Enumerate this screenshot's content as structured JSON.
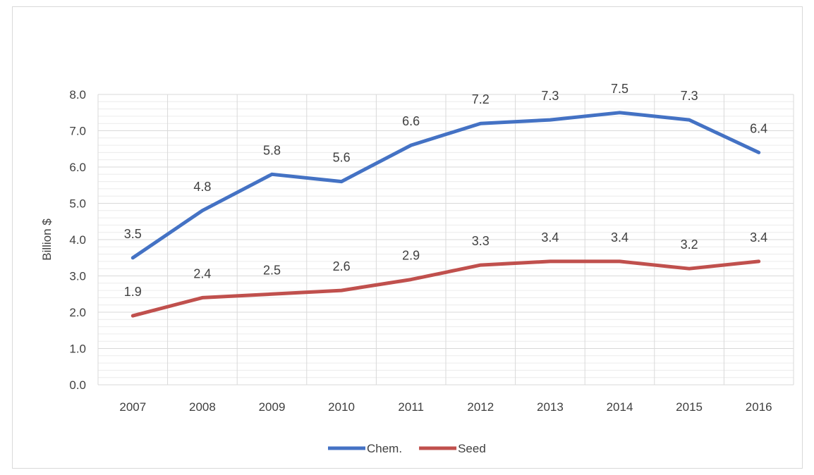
{
  "chart_data": {
    "type": "line",
    "title": "",
    "xlabel": "",
    "ylabel": "Billion $",
    "ylim": [
      0,
      8
    ],
    "yticks": [
      "0.0",
      "1.0",
      "2.0",
      "3.0",
      "4.0",
      "5.0",
      "6.0",
      "7.0",
      "8.0"
    ],
    "categories": [
      "2007",
      "2008",
      "2009",
      "2010",
      "2011",
      "2012",
      "2013",
      "2014",
      "2015",
      "2016"
    ],
    "series": [
      {
        "name": "Chem.",
        "color": "#4472c4",
        "values": [
          3.5,
          4.8,
          5.8,
          5.6,
          6.6,
          7.2,
          7.3,
          7.5,
          7.3,
          6.4
        ],
        "labels": [
          "3.5",
          "4.8",
          "5.8",
          "5.6",
          "6.6",
          "7.2",
          "7.3",
          "7.5",
          "7.3",
          "6.4"
        ]
      },
      {
        "name": "Seed",
        "color": "#c0504d",
        "values": [
          1.9,
          2.4,
          2.5,
          2.6,
          2.9,
          3.3,
          3.4,
          3.4,
          3.2,
          3.4
        ],
        "labels": [
          "1.9",
          "2.4",
          "2.5",
          "2.6",
          "2.9",
          "3.3",
          "3.4",
          "3.4",
          "3.2",
          "3.4"
        ]
      }
    ],
    "grid": true,
    "legend_position": "bottom"
  }
}
